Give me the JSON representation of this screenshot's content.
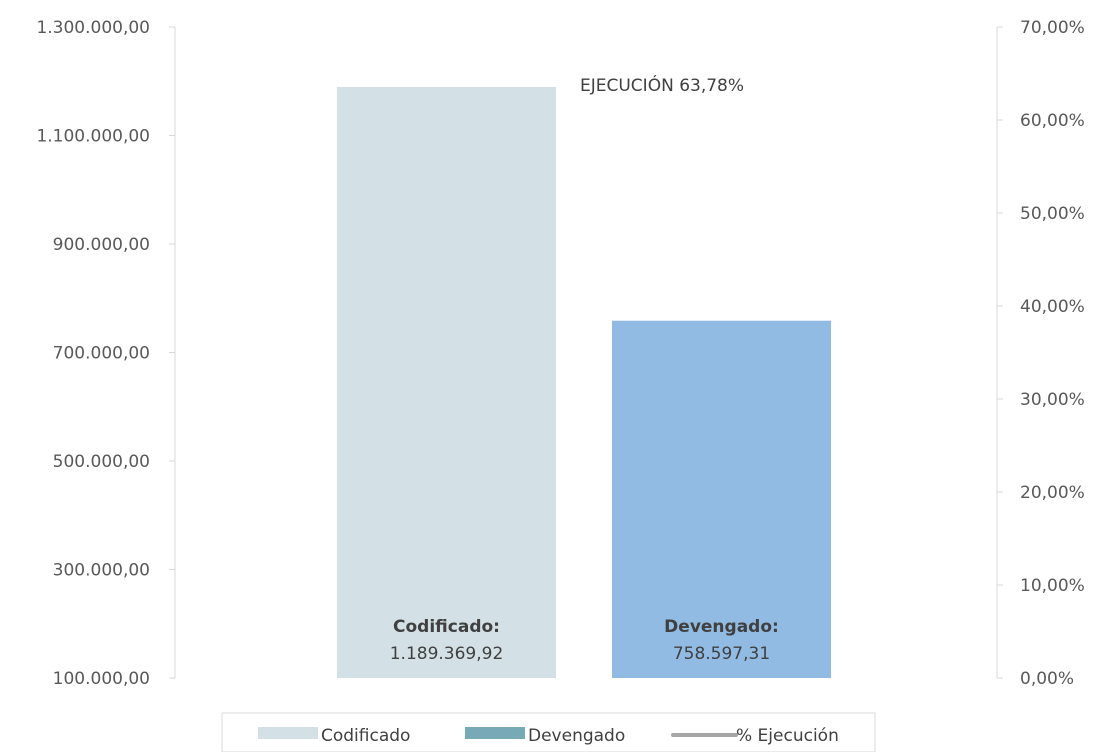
{
  "chart_data": {
    "type": "bar",
    "categories": [
      "Codificado",
      "Devengado"
    ],
    "values": [
      1189369.92,
      758597.31
    ],
    "value_labels": [
      "1.189.369,92",
      "758.597,31"
    ],
    "bar_titles": [
      "Codificado:",
      "Devengado:"
    ],
    "bar_colors": [
      "#d3e0e5",
      "#91bbe3"
    ],
    "annotation": "EJECUCIÓN 63,78%",
    "y_left": {
      "ylim": [
        100000,
        1300000
      ],
      "ticks": [
        100000,
        300000,
        500000,
        700000,
        900000,
        1100000,
        1300000
      ],
      "tick_labels": [
        "100.000,00",
        "300.000,00",
        "500.000,00",
        "700.000,00",
        "900.000,00",
        "1.100.000,00",
        "1.300.000,00"
      ]
    },
    "y_right": {
      "ylim": [
        0,
        70
      ],
      "ticks": [
        0,
        10,
        20,
        30,
        40,
        50,
        60,
        70
      ],
      "tick_labels": [
        "0,00%",
        "10,00%",
        "20,00%",
        "30,00%",
        "40,00%",
        "50,00%",
        "60,00%",
        "70,00%"
      ]
    },
    "grid": false,
    "legend": {
      "position": "bottom",
      "items": [
        {
          "label": "Codificado",
          "color": "#d3e0e5",
          "kind": "bar"
        },
        {
          "label": "Devengado",
          "color": "#77a9b7",
          "kind": "bar"
        },
        {
          "label": "% Ejecución",
          "color": "#a6a6a6",
          "kind": "line"
        }
      ]
    }
  }
}
